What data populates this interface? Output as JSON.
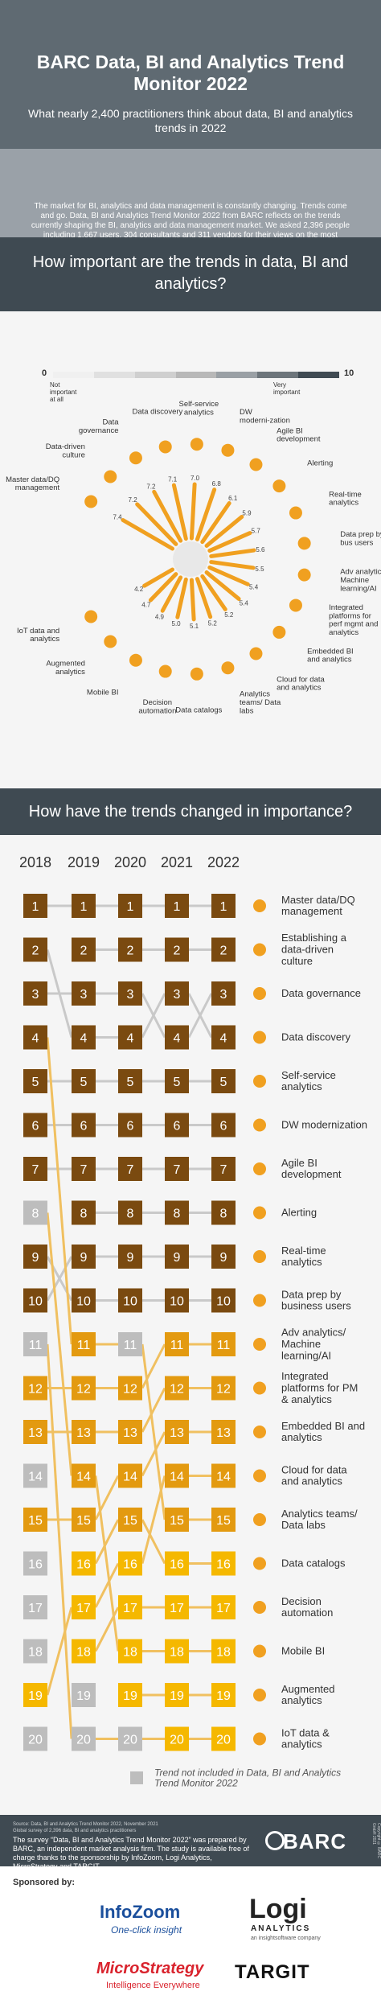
{
  "header": {
    "title": "BARC Data, BI and Analytics Trend Monitor 2022",
    "subtitle": "What nearly 2,400 practitioners think about data, BI and analytics trends in 2022",
    "intro": "The market for BI, analytics and data management is constantly changing. Trends come and go. Data, BI and Analytics Trend Monitor 2022 from BARC reflects on the trends currently shaping the BI, analytics and data management market. We asked 2,396 people including 1,667 users, 304 consultants and 311 vendors for their views on the most important trends"
  },
  "section1": {
    "title": "How important are the trends in data, BI and analytics?"
  },
  "scale": {
    "min": "0",
    "max": "10",
    "low_label": "Not important at all",
    "high_label": "Very important"
  },
  "chart_data": [
    {
      "type": "radial-bar",
      "ylim": [
        0,
        10
      ],
      "categories": [
        "Master data/DQ management",
        "Data-driven culture",
        "Data governance",
        "Data discovery",
        "Self-service analytics",
        "DW moderni-zation",
        "Agile BI development",
        "Alerting",
        "Real-time analytics",
        "Data prep by bus users",
        "Adv analytics/ Machine learning/AI",
        "Integrated platforms for perf mgmt and analytics",
        "Embedded BI and analytics",
        "Cloud for data and analytics",
        "Analytics teams/ Data labs",
        "Data catalogs",
        "Decision automation",
        "Mobile BI",
        "Augmented analytics",
        "IoT data and analytics"
      ],
      "values": [
        7.4,
        7.2,
        7.2,
        7.1,
        7.0,
        6.8,
        6.1,
        5.9,
        5.7,
        5.6,
        5.5,
        5.4,
        5.4,
        5.2,
        5.2,
        5.1,
        5.0,
        4.9,
        4.7,
        4.2
      ]
    },
    {
      "type": "rank-matrix",
      "years": [
        "2018",
        "2019",
        "2020",
        "2021",
        "2022"
      ],
      "trends": [
        {
          "label": "Master data/DQ management",
          "ranks": [
            1,
            1,
            1,
            1,
            1
          ]
        },
        {
          "label": "Establishing a data-driven culture",
          "ranks": [
            null,
            2,
            2,
            2,
            2
          ]
        },
        {
          "label": "Data governance",
          "ranks": [
            3,
            3,
            3,
            4,
            3
          ]
        },
        {
          "label": "Data discovery",
          "ranks": [
            2,
            4,
            4,
            3,
            4
          ]
        },
        {
          "label": "Self-service analytics",
          "ranks": [
            5,
            5,
            5,
            5,
            5
          ]
        },
        {
          "label": "DW modernization",
          "ranks": [
            6,
            6,
            6,
            6,
            6
          ]
        },
        {
          "label": "Agile BI development",
          "ranks": [
            7,
            7,
            7,
            7,
            7
          ]
        },
        {
          "label": "Alerting",
          "ranks": [
            null,
            8,
            8,
            8,
            8
          ]
        },
        {
          "label": "Real-time analytics",
          "ranks": [
            10,
            9,
            9,
            9,
            9
          ]
        },
        {
          "label": "Data prep by business users",
          "ranks": [
            9,
            10,
            10,
            10,
            10
          ]
        },
        {
          "label": "Adv analytics/ Machine learning/AI",
          "ranks": [
            12,
            12,
            12,
            11,
            11
          ]
        },
        {
          "label": "Integrated platforms for PM & analytics",
          "ranks": [
            13,
            13,
            13,
            12,
            12
          ]
        },
        {
          "label": "Embedded BI and analytics",
          "ranks": [
            15,
            15,
            14,
            13,
            13
          ]
        },
        {
          "label": "Cloud for data and analytics",
          "ranks": [
            19,
            17,
            16,
            14,
            14
          ]
        },
        {
          "label": "Analytics teams/ Data labs",
          "ranks": [
            4,
            11,
            11,
            15,
            15
          ]
        },
        {
          "label": "Data catalogs",
          "ranks": [
            null,
            16,
            15,
            16,
            16
          ]
        },
        {
          "label": "Decision automation",
          "ranks": [
            null,
            18,
            17,
            17,
            17
          ]
        },
        {
          "label": "Mobile BI",
          "ranks": [
            8,
            14,
            18,
            18,
            18
          ]
        },
        {
          "label": "Augmented analytics",
          "ranks": [
            null,
            null,
            19,
            19,
            19
          ]
        },
        {
          "label": "IoT data & analytics",
          "ranks": [
            11,
            20,
            20,
            20,
            20
          ]
        }
      ],
      "inactive_rows": [
        [
          8,
          11,
          14,
          16,
          17,
          18,
          20
        ],
        [
          19,
          20
        ],
        [
          11,
          20
        ],
        [],
        []
      ]
    }
  ],
  "section2": {
    "title": "How have the trends changed in importance?"
  },
  "legend": {
    "note": "Trend not included in Data, BI and Analytics Trend Monitor 2022"
  },
  "footer": {
    "source": "Source: Data, BI and Analytics Trend Monitor 2022, November 2021",
    "source2": "Global survey of 2,396 data, BI and analytics practitioners",
    "text": "The survey “Data, BI and Analytics Trend Monitor 2022” was prepared by BARC, an independent market analysis firm. The study is available free of charge thanks to the sponsorship by InfoZoom, Logi Analytics, MicroStrategy and TARGIT.",
    "logo": "BARC",
    "copyright": "Copyright © BARC GmbH 2021"
  },
  "sponsors": {
    "label": "Sponsored by:",
    "infozoom": "InfoZoom",
    "infozoom_tag": "One-click insight",
    "logi": "Logi",
    "logi_sub": "ANALYTICS",
    "logi_tag": "an insightsoftware company",
    "micro": "MicroStrategy",
    "micro_tag": "Intelligence Everywhere",
    "targit": "TARGIT"
  },
  "colors": {
    "dark": "#3f4a52",
    "mid": "#5f6a72",
    "orange": "#f0a020",
    "brown": "#7a4a10",
    "gold": "#f5b800",
    "grey": "#bdbdbd"
  }
}
